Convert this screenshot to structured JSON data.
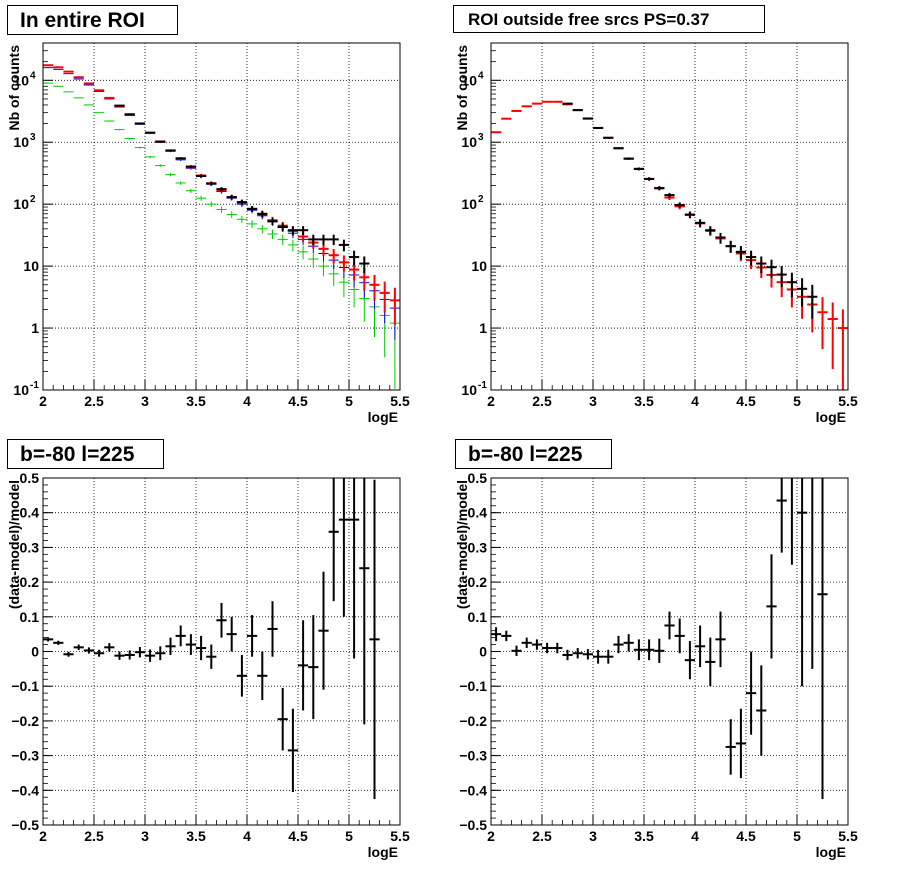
{
  "chart_data": [
    {
      "type": "scatter",
      "title": "In entire ROI",
      "xlabel": "logE",
      "ylabel": "Nb of counts",
      "xlim": [
        2,
        5.5
      ],
      "ylim": [
        0.1,
        40000
      ],
      "log_y": true,
      "grid": true,
      "x_ticks": [
        "2",
        "2.5",
        "3",
        "3.5",
        "4",
        "4.5",
        "5",
        "5.5"
      ],
      "y_ticks": [
        {
          "v": 0.1,
          "base": "10",
          "exp": "-1"
        },
        {
          "v": 1,
          "base": "1",
          "exp": ""
        },
        {
          "v": 10,
          "base": "10",
          "exp": ""
        },
        {
          "v": 100,
          "base": "10",
          "exp": "2"
        },
        {
          "v": 1000,
          "base": "10",
          "exp": "3"
        },
        {
          "v": 10000,
          "base": "10",
          "exp": "4"
        }
      ],
      "series": [
        {
          "style": "line",
          "color": "#00cc00",
          "x": [
            2.05,
            2.15,
            2.25,
            2.35,
            2.45,
            2.55,
            2.65,
            2.75,
            2.85,
            2.95,
            3.05,
            3.15,
            3.25,
            3.35,
            3.45,
            3.55,
            3.65,
            3.75,
            3.85,
            3.95,
            4.05,
            4.15,
            4.25,
            4.35,
            4.45,
            4.55,
            4.65,
            4.75,
            4.85,
            4.95,
            5.05,
            5.15,
            5.25,
            5.35,
            5.45
          ],
          "y": [
            9000,
            8000,
            6500,
            5200,
            4000,
            3000,
            2200,
            1600,
            1150,
            820,
            580,
            420,
            300,
            220,
            165,
            125,
            100,
            82,
            68,
            57,
            48,
            40,
            33,
            27,
            22,
            17,
            13,
            10,
            7.5,
            5.5,
            4.2,
            3,
            2.2,
            1.6,
            1.2
          ]
        },
        {
          "style": "line",
          "color": "#0000ff",
          "x": [
            2.05,
            2.15,
            2.25,
            2.35,
            2.45,
            2.55,
            2.65,
            2.75,
            2.85,
            2.95,
            3.05,
            3.15,
            3.25,
            3.35,
            3.45,
            3.55,
            3.65,
            3.75,
            3.85,
            3.95,
            4.05,
            4.15,
            4.25,
            4.35,
            4.45,
            4.55,
            4.65,
            4.75,
            4.85,
            4.95,
            5.05,
            5.15,
            5.25,
            5.35,
            5.45
          ],
          "y": [
            16000,
            15000,
            12800,
            10500,
            8400,
            6600,
            5000,
            3700,
            2700,
            1950,
            1400,
            1000,
            720,
            520,
            380,
            280,
            210,
            160,
            125,
            100,
            80,
            65,
            52,
            42,
            34,
            27,
            21,
            16,
            12.5,
            9.5,
            7.2,
            5.4,
            4,
            2.9,
            2.1
          ]
        },
        {
          "style": "errorbar",
          "color": "#ff0000",
          "x": [
            2.05,
            2.15,
            2.25,
            2.35,
            2.45,
            2.55,
            2.65,
            2.75,
            2.85,
            2.95,
            3.05,
            3.15,
            3.25,
            3.35,
            3.45,
            3.55,
            3.65,
            3.75,
            3.85,
            3.95,
            4.05,
            4.15,
            4.25,
            4.35,
            4.45,
            4.55,
            4.65,
            4.75,
            4.85,
            4.95,
            5.05,
            5.15,
            5.25,
            5.35,
            5.45
          ],
          "y": [
            17500,
            16200,
            13800,
            11200,
            8900,
            6900,
            5200,
            3850,
            2800,
            2000,
            1430,
            1030,
            740,
            540,
            395,
            290,
            218,
            167,
            130,
            104,
            84,
            68,
            55,
            45,
            37,
            30,
            24,
            19,
            15,
            11.5,
            8.8,
            6.6,
            5,
            3.7,
            2.8
          ]
        },
        {
          "style": "errorbar",
          "color": "#000000",
          "x": [
            2.75,
            2.85,
            2.95,
            3.05,
            3.15,
            3.25,
            3.35,
            3.45,
            3.55,
            3.65,
            3.75,
            3.85,
            3.95,
            4.05,
            4.15,
            4.25,
            4.35,
            4.45,
            4.55,
            4.65,
            4.75,
            4.85,
            4.95,
            5.05,
            5.15
          ],
          "y": [
            3900,
            2830,
            2010,
            1420,
            1020,
            730,
            550,
            405,
            285,
            215,
            175,
            130,
            108,
            84,
            70,
            53,
            43,
            38,
            38,
            27,
            27,
            27,
            22,
            14,
            11
          ]
        }
      ]
    },
    {
      "type": "scatter",
      "title": "ROI outside free srcs PS=0.37",
      "xlabel": "logE",
      "ylabel": "Nb of counts",
      "xlim": [
        2,
        5.5
      ],
      "ylim": [
        0.1,
        40000
      ],
      "log_y": true,
      "grid": true,
      "x_ticks": [
        "2",
        "2.5",
        "3",
        "3.5",
        "4",
        "4.5",
        "5",
        "5.5"
      ],
      "y_ticks": [
        {
          "v": 0.1,
          "base": "10",
          "exp": "-1"
        },
        {
          "v": 1,
          "base": "1",
          "exp": ""
        },
        {
          "v": 10,
          "base": "10",
          "exp": ""
        },
        {
          "v": 100,
          "base": "10",
          "exp": "2"
        },
        {
          "v": 1000,
          "base": "10",
          "exp": "3"
        },
        {
          "v": 10000,
          "base": "10",
          "exp": "4"
        }
      ],
      "series": [
        {
          "style": "errorbar",
          "color": "#ff0000",
          "x": [
            2.05,
            2.15,
            2.25,
            2.35,
            2.45,
            2.55,
            2.65,
            2.75,
            2.85,
            2.95,
            3.05,
            3.15,
            3.25,
            3.35,
            3.45,
            3.55,
            3.65,
            3.75,
            3.85,
            3.95,
            4.05,
            4.15,
            4.25,
            4.35,
            4.45,
            4.55,
            4.65,
            4.75,
            4.85,
            4.95,
            5.05,
            5.15,
            5.25,
            5.35,
            5.45
          ],
          "y": [
            1450,
            2400,
            3200,
            3800,
            4200,
            4500,
            4500,
            4100,
            3300,
            2400,
            1700,
            1180,
            800,
            540,
            370,
            255,
            180,
            128,
            92,
            67,
            49,
            37,
            28,
            21,
            16,
            12.5,
            9.5,
            7.2,
            5.5,
            4.2,
            3.2,
            2.4,
            1.8,
            1.4,
            1
          ]
        },
        {
          "style": "errorbar",
          "color": "#000000",
          "x": [
            2.75,
            2.85,
            2.95,
            3.05,
            3.15,
            3.25,
            3.35,
            3.45,
            3.55,
            3.65,
            3.75,
            3.85,
            3.95,
            4.05,
            4.15,
            4.25,
            4.35,
            4.45,
            4.55,
            4.65,
            4.75,
            4.85,
            4.95,
            5.05,
            5.15
          ],
          "y": [
            4200,
            3300,
            2420,
            1700,
            1180,
            800,
            545,
            372,
            256,
            182,
            140,
            97,
            68,
            50,
            38,
            29,
            21,
            17,
            14,
            11,
            9.6,
            7.3,
            5.5,
            4.3,
            3.2
          ]
        }
      ]
    },
    {
      "type": "scatter",
      "title": "b=-80 l=225",
      "xlabel": "logE",
      "ylabel": "(data-model)/model",
      "xlim": [
        2,
        5.5
      ],
      "ylim": [
        -0.5,
        0.5
      ],
      "log_y": false,
      "grid": true,
      "x_ticks": [
        "2",
        "2.5",
        "3",
        "3.5",
        "4",
        "4.5",
        "5",
        "5.5"
      ],
      "y_ticks": [
        {
          "v": -0.5,
          "base": "−0.5",
          "exp": ""
        },
        {
          "v": -0.4,
          "base": "−0.4",
          "exp": ""
        },
        {
          "v": -0.3,
          "base": "−0.3",
          "exp": ""
        },
        {
          "v": -0.2,
          "base": "−0.2",
          "exp": ""
        },
        {
          "v": -0.1,
          "base": "−0.1",
          "exp": ""
        },
        {
          "v": 0,
          "base": "0",
          "exp": ""
        },
        {
          "v": 0.1,
          "base": "0.1",
          "exp": ""
        },
        {
          "v": 0.2,
          "base": "0.2",
          "exp": ""
        },
        {
          "v": 0.3,
          "base": "0.3",
          "exp": ""
        },
        {
          "v": 0.4,
          "base": "0.4",
          "exp": ""
        },
        {
          "v": 0.5,
          "base": "0.5",
          "exp": ""
        }
      ],
      "series": [
        {
          "style": "errorbar",
          "color": "#000000",
          "x": [
            2.05,
            2.15,
            2.25,
            2.35,
            2.45,
            2.55,
            2.65,
            2.75,
            2.85,
            2.95,
            3.05,
            3.15,
            3.25,
            3.35,
            3.45,
            3.55,
            3.65,
            3.75,
            3.85,
            3.95,
            4.05,
            4.15,
            4.25,
            4.35,
            4.45,
            4.55,
            4.65,
            4.75,
            4.85,
            4.95,
            5.05,
            5.15,
            5.25
          ],
          "y": [
            0.035,
            0.025,
            -0.008,
            0.012,
            0.003,
            -0.005,
            0.012,
            -0.012,
            -0.01,
            -0.002,
            -0.012,
            -0.005,
            0.015,
            0.045,
            0.02,
            0.01,
            -0.015,
            0.09,
            0.05,
            -0.07,
            0.045,
            -0.07,
            0.065,
            -0.195,
            -0.285,
            -0.04,
            -0.045,
            0.06,
            0.345,
            0.38,
            0.38,
            0.24,
            0.035
          ],
          "err": [
            0.006,
            0.006,
            0.007,
            0.008,
            0.009,
            0.01,
            0.012,
            0.012,
            0.013,
            0.015,
            0.018,
            0.02,
            0.025,
            0.03,
            0.03,
            0.035,
            0.035,
            0.05,
            0.05,
            0.06,
            0.06,
            0.07,
            0.08,
            0.09,
            0.12,
            0.13,
            0.15,
            0.17,
            0.2,
            0.28,
            0.4,
            0.45,
            0.46
          ]
        }
      ]
    },
    {
      "type": "scatter",
      "title": "b=-80 l=225",
      "xlabel": "logE",
      "ylabel": "(data-model)/model",
      "xlim": [
        2,
        5.5
      ],
      "ylim": [
        -0.5,
        0.5
      ],
      "log_y": false,
      "grid": true,
      "x_ticks": [
        "2",
        "2.5",
        "3",
        "3.5",
        "4",
        "4.5",
        "5",
        "5.5"
      ],
      "y_ticks": [
        {
          "v": -0.5,
          "base": "−0.5",
          "exp": ""
        },
        {
          "v": -0.4,
          "base": "−0.4",
          "exp": ""
        },
        {
          "v": -0.3,
          "base": "−0.3",
          "exp": ""
        },
        {
          "v": -0.2,
          "base": "−0.2",
          "exp": ""
        },
        {
          "v": -0.1,
          "base": "−0.1",
          "exp": ""
        },
        {
          "v": 0,
          "base": "0",
          "exp": ""
        },
        {
          "v": 0.1,
          "base": "0.1",
          "exp": ""
        },
        {
          "v": 0.2,
          "base": "0.2",
          "exp": ""
        },
        {
          "v": 0.3,
          "base": "0.3",
          "exp": ""
        },
        {
          "v": 0.4,
          "base": "0.4",
          "exp": ""
        },
        {
          "v": 0.5,
          "base": "0.5",
          "exp": ""
        }
      ],
      "series": [
        {
          "style": "errorbar",
          "color": "#000000",
          "x": [
            2.05,
            2.15,
            2.25,
            2.35,
            2.45,
            2.55,
            2.65,
            2.75,
            2.85,
            2.95,
            3.05,
            3.15,
            3.25,
            3.35,
            3.45,
            3.55,
            3.65,
            3.75,
            3.85,
            3.95,
            4.05,
            4.15,
            4.25,
            4.35,
            4.45,
            4.55,
            4.65,
            4.75,
            4.85,
            4.95,
            5.05,
            5.15,
            5.25
          ],
          "y": [
            0.05,
            0.045,
            0.002,
            0.025,
            0.02,
            0.01,
            0.01,
            -0.01,
            -0.005,
            -0.008,
            -0.015,
            -0.015,
            0.02,
            0.025,
            0.005,
            0.005,
            0.002,
            0.075,
            0.045,
            -0.025,
            0.015,
            -0.03,
            0.035,
            -0.275,
            -0.265,
            -0.12,
            -0.17,
            0.13,
            0.435,
            0.55,
            0.4,
            0.55,
            0.165
          ],
          "err": [
            0.02,
            0.015,
            0.015,
            0.015,
            0.015,
            0.015,
            0.015,
            0.015,
            0.015,
            0.015,
            0.02,
            0.02,
            0.025,
            0.025,
            0.03,
            0.03,
            0.035,
            0.04,
            0.05,
            0.055,
            0.06,
            0.07,
            0.08,
            0.08,
            0.1,
            0.12,
            0.13,
            0.15,
            0.15,
            0.3,
            0.5,
            0.6,
            0.59
          ]
        }
      ]
    }
  ]
}
